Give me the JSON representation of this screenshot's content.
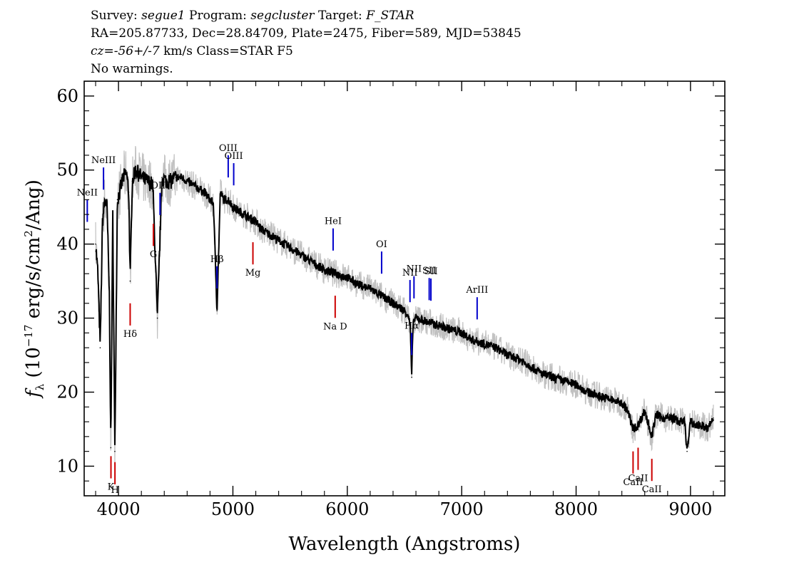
{
  "header": {
    "survey_label": "Survey:",
    "survey": "segue1",
    "program_label": "Program:",
    "program": "segcluster",
    "target_label": "Target:",
    "target": "F_STAR",
    "line2": "RA=205.87733, Dec=28.84709, Plate=2475, Fiber=589, MJD=53845",
    "cz_label": "cz=",
    "cz_value": "-56+/-7",
    "cz_unit": "km/s",
    "class_text": "Class=STAR F5",
    "warnings": "No warnings."
  },
  "chart_data": {
    "type": "line",
    "xlabel": "Wavelength (Angstroms)",
    "ylabel": "f_λ (10^-17 erg/s/cm^2/Ang)",
    "ylabel_parts": {
      "f": "f",
      "lambda": "λ",
      "pre": " (10",
      "exp1": "−17",
      "mid": " erg/s/cm",
      "exp2": "2",
      "post": "/Ang)"
    },
    "xlim": [
      3700,
      9300
    ],
    "ylim": [
      6,
      62
    ],
    "xticks": [
      4000,
      5000,
      6000,
      7000,
      8000,
      9000
    ],
    "yticks": [
      10,
      20,
      30,
      40,
      50,
      60
    ],
    "grid": false,
    "colors": {
      "flux": "#000000",
      "error": "#c0c0c0",
      "emission": "#0000cc",
      "absorption": "#cc0000"
    },
    "series": [
      {
        "role": "flux",
        "x": [
          3800,
          3820,
          3840,
          3860,
          3880,
          3900,
          3920,
          3933,
          3950,
          3968,
          3990,
          4010,
          4040,
          4070,
          4090,
          4102,
          4120,
          4150,
          4200,
          4250,
          4300,
          4340,
          4380,
          4420,
          4460,
          4500,
          4550,
          4600,
          4650,
          4700,
          4750,
          4800,
          4830,
          4861,
          4890,
          4920,
          4960,
          5000,
          5050,
          5100,
          5150,
          5200,
          5250,
          5300,
          5400,
          5500,
          5600,
          5700,
          5800,
          5900,
          6000,
          6100,
          6200,
          6300,
          6400,
          6500,
          6530,
          6550,
          6563,
          6575,
          6600,
          6700,
          6800,
          6900,
          7000,
          7100,
          7200,
          7300,
          7400,
          7500,
          7550,
          7600,
          7650,
          7700,
          7800,
          7900,
          8000,
          8100,
          8200,
          8300,
          8400,
          8450,
          8498,
          8542,
          8600,
          8662,
          8700,
          8750,
          8800,
          8850,
          8900,
          8950,
          8970,
          9000,
          9050,
          9100,
          9150,
          9200
        ],
        "y": [
          40.0,
          36.0,
          26.0,
          43.0,
          46.0,
          45.0,
          33.0,
          12.5,
          44.0,
          12.0,
          46.0,
          47.0,
          49.0,
          49.5,
          47.0,
          35.0,
          48.5,
          50.0,
          49.0,
          48.5,
          48.0,
          30.0,
          49.0,
          48.5,
          48.5,
          49.0,
          49.0,
          48.5,
          48.0,
          47.5,
          47.0,
          46.0,
          45.5,
          31.0,
          47.0,
          46.0,
          46.0,
          45.0,
          44.5,
          44.0,
          43.5,
          43.0,
          42.0,
          41.5,
          40.5,
          39.5,
          38.5,
          37.5,
          36.5,
          36.0,
          35.5,
          34.5,
          34.0,
          33.0,
          32.0,
          31.0,
          30.5,
          29.0,
          22.0,
          29.5,
          30.0,
          29.5,
          29.0,
          28.5,
          28.0,
          27.0,
          26.5,
          26.0,
          25.0,
          24.5,
          24.0,
          23.5,
          23.0,
          22.5,
          22.0,
          21.5,
          21.0,
          20.0,
          19.5,
          19.0,
          18.5,
          17.5,
          15.0,
          15.5,
          17.5,
          14.0,
          17.0,
          16.5,
          16.5,
          16.5,
          16.0,
          16.0,
          12.0,
          16.0,
          15.5,
          15.5,
          15.0,
          16.5
        ]
      }
    ],
    "line_markers": [
      {
        "label": "NeII",
        "x": 3727,
        "type": "emission"
      },
      {
        "label": "NeIII",
        "x": 3869,
        "type": "emission"
      },
      {
        "label": "OIII",
        "x": 4363,
        "type": "emission"
      },
      {
        "label": "Hδ",
        "x": 4102,
        "type": "absorption"
      },
      {
        "label": "Hβ",
        "x": 4861,
        "type": "emission"
      },
      {
        "label": "OIII",
        "x": 4959,
        "type": "emission"
      },
      {
        "label": "OIII",
        "x": 5007,
        "type": "emission"
      },
      {
        "label": "HeI",
        "x": 5876,
        "type": "emission"
      },
      {
        "label": "OI",
        "x": 6300,
        "type": "emission"
      },
      {
        "label": "NII",
        "x": 6548,
        "type": "emission"
      },
      {
        "label": "Hα",
        "x": 6563,
        "type": "emission"
      },
      {
        "label": "NII",
        "x": 6583,
        "type": "emission"
      },
      {
        "label": "SII",
        "x": 6716,
        "type": "emission"
      },
      {
        "label": "SII",
        "x": 6731,
        "type": "emission"
      },
      {
        "label": "ArIII",
        "x": 7135,
        "type": "emission"
      },
      {
        "label": "K",
        "x": 3934,
        "type": "absorption"
      },
      {
        "label": "H",
        "x": 3969,
        "type": "absorption"
      },
      {
        "label": "G",
        "x": 4305,
        "type": "absorption"
      },
      {
        "label": "Mg",
        "x": 5175,
        "type": "absorption"
      },
      {
        "label": "Na D",
        "x": 5894,
        "type": "absorption"
      },
      {
        "label": "CaII",
        "x": 8498,
        "type": "absorption"
      },
      {
        "label": "CaII",
        "x": 8542,
        "type": "absorption"
      },
      {
        "label": "CaII",
        "x": 8662,
        "type": "absorption"
      }
    ]
  }
}
